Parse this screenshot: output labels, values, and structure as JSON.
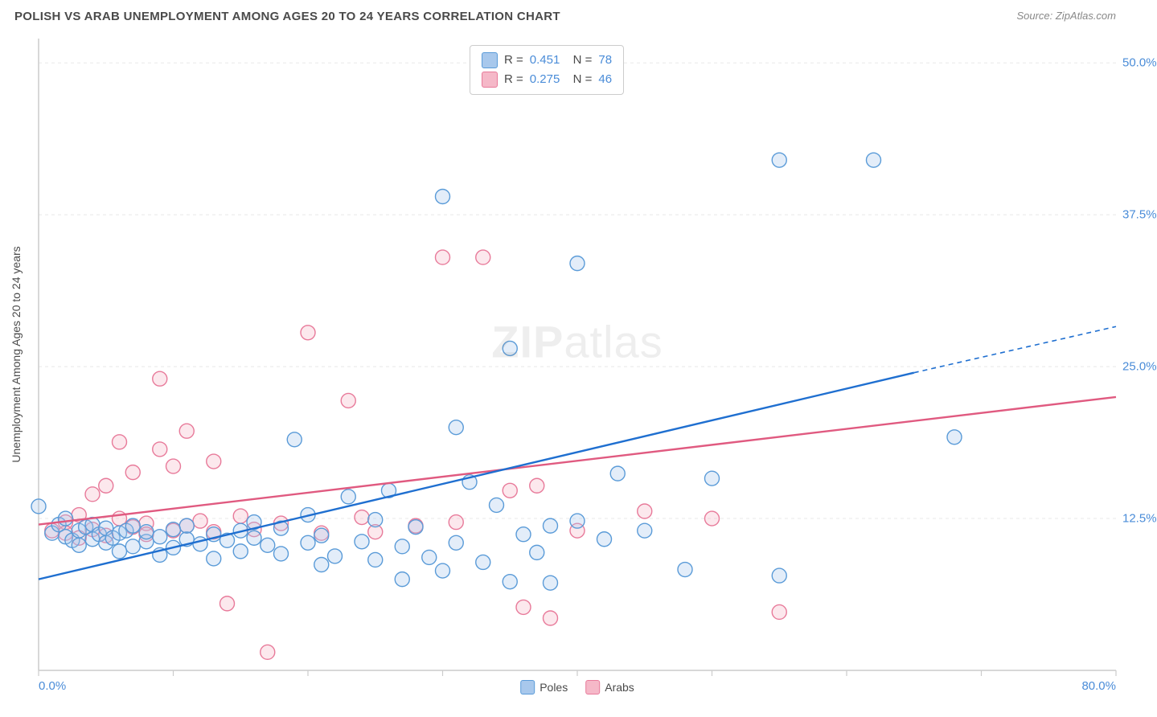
{
  "header": {
    "title": "POLISH VS ARAB UNEMPLOYMENT AMONG AGES 20 TO 24 YEARS CORRELATION CHART",
    "source_prefix": "Source: ",
    "source_name": "ZipAtlas.com"
  },
  "watermark": {
    "bold": "ZIP",
    "rest": "atlas"
  },
  "chart": {
    "type": "scatter",
    "ylabel": "Unemployment Among Ages 20 to 24 years",
    "xlim": [
      0,
      80
    ],
    "ylim": [
      0,
      52
    ],
    "x_origin_label": "0.0%",
    "x_max_label": "80.0%",
    "x_tick_positions": [
      0,
      10,
      20,
      30,
      40,
      50,
      60,
      70,
      80
    ],
    "y_ticks": [
      {
        "pos": 12.5,
        "label": "12.5%"
      },
      {
        "pos": 25.0,
        "label": "25.0%"
      },
      {
        "pos": 37.5,
        "label": "37.5%"
      },
      {
        "pos": 50.0,
        "label": "50.0%"
      }
    ],
    "background_color": "#ffffff",
    "grid_color": "#e8e8e8",
    "axis_color": "#cccccc",
    "tick_label_color": "#4a8cd8",
    "marker_radius": 9,
    "marker_stroke_width": 1.4,
    "marker_fill_opacity": 0.32,
    "trend_line_width": 2.4,
    "series": {
      "poles": {
        "label": "Poles",
        "fill": "#a8c8ec",
        "stroke": "#5a9bd8",
        "line_color": "#1f6fd0",
        "R": "0.451",
        "N": "78",
        "trend": {
          "x1": 0,
          "y1": 7.5,
          "x2": 65,
          "y2": 24.5,
          "dashed_to_x": 80,
          "dashed_to_y": 28.3
        },
        "points": [
          [
            0,
            13.5
          ],
          [
            1,
            11.3
          ],
          [
            1.5,
            12
          ],
          [
            2,
            11
          ],
          [
            2,
            12.5
          ],
          [
            2.5,
            10.7
          ],
          [
            3,
            11.5
          ],
          [
            3,
            10.3
          ],
          [
            3.5,
            11.8
          ],
          [
            4,
            10.8
          ],
          [
            4,
            12
          ],
          [
            4.5,
            11.2
          ],
          [
            5,
            10.5
          ],
          [
            5,
            11.7
          ],
          [
            5.5,
            10.9
          ],
          [
            6,
            11.3
          ],
          [
            6,
            9.8
          ],
          [
            6.5,
            11.5
          ],
          [
            7,
            10.2
          ],
          [
            7,
            11.9
          ],
          [
            8,
            10.6
          ],
          [
            8,
            11.4
          ],
          [
            9,
            11
          ],
          [
            9,
            9.5
          ],
          [
            10,
            11.6
          ],
          [
            10,
            10.1
          ],
          [
            11,
            10.8
          ],
          [
            11,
            11.9
          ],
          [
            12,
            10.4
          ],
          [
            13,
            11.2
          ],
          [
            13,
            9.2
          ],
          [
            14,
            10.7
          ],
          [
            15,
            11.5
          ],
          [
            15,
            9.8
          ],
          [
            16,
            10.9
          ],
          [
            16,
            12.2
          ],
          [
            17,
            10.3
          ],
          [
            18,
            11.7
          ],
          [
            18,
            9.6
          ],
          [
            19,
            19
          ],
          [
            20,
            10.5
          ],
          [
            20,
            12.8
          ],
          [
            21,
            11.1
          ],
          [
            21,
            8.7
          ],
          [
            22,
            9.4
          ],
          [
            23,
            14.3
          ],
          [
            24,
            10.6
          ],
          [
            25,
            12.4
          ],
          [
            25,
            9.1
          ],
          [
            26,
            14.8
          ],
          [
            27,
            7.5
          ],
          [
            27,
            10.2
          ],
          [
            28,
            11.8
          ],
          [
            29,
            9.3
          ],
          [
            30,
            39
          ],
          [
            30,
            8.2
          ],
          [
            31,
            20
          ],
          [
            31,
            10.5
          ],
          [
            32,
            15.5
          ],
          [
            33,
            8.9
          ],
          [
            34,
            13.6
          ],
          [
            35,
            26.5
          ],
          [
            35,
            7.3
          ],
          [
            36,
            11.2
          ],
          [
            37,
            9.7
          ],
          [
            38,
            11.9
          ],
          [
            38,
            7.2
          ],
          [
            40,
            33.5
          ],
          [
            40,
            12.3
          ],
          [
            42,
            10.8
          ],
          [
            43,
            16.2
          ],
          [
            45,
            11.5
          ],
          [
            48,
            8.3
          ],
          [
            50,
            15.8
          ],
          [
            55,
            42
          ],
          [
            55,
            7.8
          ],
          [
            62,
            42
          ],
          [
            68,
            19.2
          ]
        ]
      },
      "arabs": {
        "label": "Arabs",
        "fill": "#f5b8c8",
        "stroke": "#e87a9a",
        "line_color": "#e05a80",
        "R": "0.275",
        "N": "46",
        "trend": {
          "x1": 0,
          "y1": 12.0,
          "x2": 80,
          "y2": 22.5
        },
        "points": [
          [
            1,
            11.5
          ],
          [
            2,
            12.2
          ],
          [
            2,
            11.3
          ],
          [
            3,
            12.8
          ],
          [
            3,
            10.9
          ],
          [
            4,
            14.5
          ],
          [
            4,
            11.6
          ],
          [
            5,
            11.1
          ],
          [
            5,
            15.2
          ],
          [
            6,
            12.5
          ],
          [
            6,
            18.8
          ],
          [
            7,
            11.8
          ],
          [
            7,
            16.3
          ],
          [
            8,
            12.1
          ],
          [
            8,
            11.2
          ],
          [
            9,
            24
          ],
          [
            9,
            18.2
          ],
          [
            10,
            11.5
          ],
          [
            10,
            16.8
          ],
          [
            11,
            19.7
          ],
          [
            11,
            11.9
          ],
          [
            12,
            12.3
          ],
          [
            13,
            11.4
          ],
          [
            13,
            17.2
          ],
          [
            14,
            5.5
          ],
          [
            15,
            12.7
          ],
          [
            16,
            11.6
          ],
          [
            17,
            1.5
          ],
          [
            18,
            12.1
          ],
          [
            20,
            27.8
          ],
          [
            21,
            11.3
          ],
          [
            23,
            22.2
          ],
          [
            24,
            12.6
          ],
          [
            25,
            11.4
          ],
          [
            28,
            11.9
          ],
          [
            30,
            34
          ],
          [
            31,
            12.2
          ],
          [
            33,
            34
          ],
          [
            35,
            14.8
          ],
          [
            36,
            5.2
          ],
          [
            37,
            15.2
          ],
          [
            38,
            4.3
          ],
          [
            40,
            11.5
          ],
          [
            45,
            13.1
          ],
          [
            50,
            12.5
          ],
          [
            55,
            4.8
          ]
        ]
      }
    },
    "bottom_legend": [
      {
        "series": "poles"
      },
      {
        "series": "arabs"
      }
    ]
  }
}
